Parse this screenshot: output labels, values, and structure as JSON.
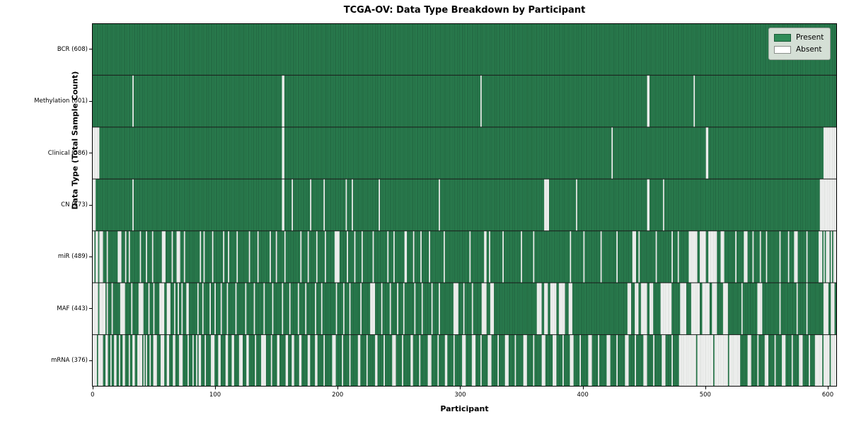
{
  "chart_data": {
    "type": "heatmap",
    "title": "TCGA-OV: Data Type Breakdown by Participant",
    "xlabel": "Participant",
    "ylabel": "Data Type (Total Sample Count)",
    "x_ticks": [
      0,
      100,
      200,
      300,
      400,
      500,
      600
    ],
    "n_participants": 608,
    "xlim": [
      -0.5,
      607.5
    ],
    "grid": false,
    "colors": {
      "present": "#2e8b57",
      "present_edge": "#16432b",
      "absent": "#ffffff",
      "absent_edge": "#bcc0bc",
      "separator": "#1a1a1a"
    },
    "legend": {
      "position": "upper right",
      "entries": [
        {
          "label": "Present",
          "color": "#2e8b57",
          "edge": "#1d5c39"
        },
        {
          "label": "Absent",
          "color": "#ffffff",
          "edge": "#8a8f8a"
        }
      ]
    },
    "rows": [
      {
        "data_type": "BCR",
        "label": "BCR (608)",
        "present_count": 608,
        "absent_count": 0,
        "absent_ranges": []
      },
      {
        "data_type": "Methylation",
        "label": "Methylation (601)",
        "present_count": 601,
        "absent_count": 7,
        "absent_ranges": [
          [
            33,
            33
          ],
          [
            155,
            156
          ],
          [
            317,
            317
          ],
          [
            453,
            454
          ],
          [
            491,
            491
          ]
        ]
      },
      {
        "data_type": "Clinical",
        "label": "Clinical (586)",
        "present_count": 586,
        "absent_count": 22,
        "absent_ranges": [
          [
            0,
            5
          ],
          [
            155,
            156
          ],
          [
            424,
            424
          ],
          [
            501,
            502
          ],
          [
            597,
            607
          ]
        ]
      },
      {
        "data_type": "CN",
        "label": "CN (573)",
        "present_count": 573,
        "absent_count": 35,
        "absent_ranges": [
          [
            0,
            2
          ],
          [
            33,
            33
          ],
          [
            155,
            156
          ],
          [
            163,
            163
          ],
          [
            178,
            178
          ],
          [
            189,
            189
          ],
          [
            207,
            207
          ],
          [
            212,
            212
          ],
          [
            234,
            234
          ],
          [
            283,
            283
          ],
          [
            369,
            372
          ],
          [
            395,
            395
          ],
          [
            453,
            454
          ],
          [
            466,
            466
          ],
          [
            594,
            607
          ]
        ]
      },
      {
        "data_type": "miR",
        "label": "miR (489)",
        "present_count": 489,
        "absent_count": 119,
        "absent_ranges": [
          [
            0,
            1
          ],
          [
            3,
            4
          ],
          [
            6,
            8
          ],
          [
            12,
            12
          ],
          [
            21,
            23
          ],
          [
            27,
            27
          ],
          [
            30,
            30
          ],
          [
            39,
            39
          ],
          [
            44,
            44
          ],
          [
            49,
            49
          ],
          [
            57,
            59
          ],
          [
            65,
            65
          ],
          [
            69,
            71
          ],
          [
            75,
            75
          ],
          [
            88,
            88
          ],
          [
            91,
            91
          ],
          [
            98,
            98
          ],
          [
            107,
            107
          ],
          [
            111,
            111
          ],
          [
            118,
            118
          ],
          [
            128,
            128
          ],
          [
            135,
            135
          ],
          [
            145,
            145
          ],
          [
            150,
            150
          ],
          [
            157,
            157
          ],
          [
            170,
            170
          ],
          [
            176,
            176
          ],
          [
            183,
            183
          ],
          [
            190,
            190
          ],
          [
            198,
            201
          ],
          [
            208,
            208
          ],
          [
            214,
            214
          ],
          [
            220,
            220
          ],
          [
            229,
            229
          ],
          [
            241,
            241
          ],
          [
            246,
            246
          ],
          [
            255,
            256
          ],
          [
            262,
            262
          ],
          [
            268,
            268
          ],
          [
            275,
            275
          ],
          [
            287,
            287
          ],
          [
            308,
            308
          ],
          [
            320,
            321
          ],
          [
            324,
            324
          ],
          [
            335,
            335
          ],
          [
            350,
            350
          ],
          [
            360,
            360
          ],
          [
            390,
            390
          ],
          [
            401,
            401
          ],
          [
            415,
            415
          ],
          [
            428,
            428
          ],
          [
            441,
            443
          ],
          [
            446,
            446
          ],
          [
            460,
            460
          ],
          [
            473,
            473
          ],
          [
            478,
            478
          ],
          [
            487,
            493
          ],
          [
            496,
            500
          ],
          [
            503,
            509
          ],
          [
            513,
            515
          ],
          [
            525,
            525
          ],
          [
            532,
            534
          ],
          [
            539,
            539
          ],
          [
            545,
            545
          ],
          [
            550,
            550
          ],
          [
            561,
            561
          ],
          [
            568,
            568
          ],
          [
            573,
            575
          ],
          [
            583,
            583
          ],
          [
            593,
            595
          ],
          [
            597,
            597
          ],
          [
            599,
            601
          ],
          [
            603,
            603
          ],
          [
            605,
            607
          ]
        ]
      },
      {
        "data_type": "MAF",
        "label": "MAF (443)",
        "present_count": 443,
        "absent_count": 165,
        "absent_ranges": [
          [
            0,
            4
          ],
          [
            6,
            10
          ],
          [
            12,
            12
          ],
          [
            16,
            16
          ],
          [
            23,
            26
          ],
          [
            32,
            32
          ],
          [
            38,
            41
          ],
          [
            46,
            46
          ],
          [
            50,
            50
          ],
          [
            55,
            58
          ],
          [
            61,
            63
          ],
          [
            67,
            67
          ],
          [
            70,
            70
          ],
          [
            73,
            73
          ],
          [
            77,
            78
          ],
          [
            86,
            86
          ],
          [
            90,
            90
          ],
          [
            96,
            96
          ],
          [
            100,
            100
          ],
          [
            105,
            105
          ],
          [
            110,
            110
          ],
          [
            117,
            117
          ],
          [
            125,
            125
          ],
          [
            132,
            132
          ],
          [
            140,
            140
          ],
          [
            147,
            147
          ],
          [
            155,
            155
          ],
          [
            161,
            161
          ],
          [
            168,
            168
          ],
          [
            174,
            174
          ],
          [
            182,
            182
          ],
          [
            187,
            187
          ],
          [
            199,
            199
          ],
          [
            205,
            205
          ],
          [
            210,
            210
          ],
          [
            219,
            219
          ],
          [
            227,
            230
          ],
          [
            236,
            236
          ],
          [
            243,
            243
          ],
          [
            249,
            249
          ],
          [
            254,
            254
          ],
          [
            263,
            263
          ],
          [
            269,
            269
          ],
          [
            277,
            277
          ],
          [
            283,
            283
          ],
          [
            295,
            298
          ],
          [
            303,
            303
          ],
          [
            310,
            310
          ],
          [
            318,
            321
          ],
          [
            325,
            327
          ],
          [
            363,
            366
          ],
          [
            369,
            371
          ],
          [
            374,
            378
          ],
          [
            381,
            385
          ],
          [
            389,
            391
          ],
          [
            437,
            439
          ],
          [
            443,
            445
          ],
          [
            448,
            452
          ],
          [
            455,
            457
          ],
          [
            464,
            472
          ],
          [
            480,
            484
          ],
          [
            489,
            495
          ],
          [
            498,
            503
          ],
          [
            506,
            509
          ],
          [
            515,
            518
          ],
          [
            530,
            530
          ],
          [
            543,
            546
          ],
          [
            561,
            561
          ],
          [
            575,
            575
          ],
          [
            583,
            583
          ],
          [
            597,
            600
          ],
          [
            603,
            605
          ]
        ]
      },
      {
        "data_type": "mRNA",
        "label": "mRNA (376)",
        "present_count": 376,
        "absent_count": 232,
        "absent_ranges": [
          [
            0,
            3
          ],
          [
            5,
            8
          ],
          [
            11,
            12
          ],
          [
            15,
            15
          ],
          [
            18,
            19
          ],
          [
            22,
            22
          ],
          [
            25,
            26
          ],
          [
            30,
            30
          ],
          [
            33,
            34
          ],
          [
            37,
            40
          ],
          [
            42,
            42
          ],
          [
            44,
            44
          ],
          [
            47,
            47
          ],
          [
            50,
            52
          ],
          [
            56,
            58
          ],
          [
            61,
            62
          ],
          [
            66,
            67
          ],
          [
            71,
            73
          ],
          [
            78,
            78
          ],
          [
            82,
            82
          ],
          [
            85,
            85
          ],
          [
            87,
            88
          ],
          [
            92,
            92
          ],
          [
            97,
            99
          ],
          [
            103,
            104
          ],
          [
            109,
            110
          ],
          [
            114,
            115
          ],
          [
            120,
            122
          ],
          [
            126,
            127
          ],
          [
            133,
            133
          ],
          [
            138,
            141
          ],
          [
            146,
            146
          ],
          [
            151,
            152
          ],
          [
            158,
            159
          ],
          [
            163,
            164
          ],
          [
            169,
            170
          ],
          [
            176,
            177
          ],
          [
            182,
            183
          ],
          [
            189,
            189
          ],
          [
            196,
            198
          ],
          [
            204,
            204
          ],
          [
            210,
            210
          ],
          [
            217,
            218
          ],
          [
            224,
            224
          ],
          [
            231,
            232
          ],
          [
            238,
            238
          ],
          [
            245,
            247
          ],
          [
            253,
            253
          ],
          [
            260,
            261
          ],
          [
            267,
            267
          ],
          [
            274,
            276
          ],
          [
            282,
            282
          ],
          [
            288,
            289
          ],
          [
            295,
            295
          ],
          [
            302,
            304
          ],
          [
            310,
            312
          ],
          [
            317,
            317
          ],
          [
            323,
            325
          ],
          [
            331,
            331
          ],
          [
            337,
            339
          ],
          [
            345,
            345
          ],
          [
            352,
            354
          ],
          [
            360,
            360
          ],
          [
            367,
            369
          ],
          [
            376,
            378
          ],
          [
            384,
            384
          ],
          [
            390,
            392
          ],
          [
            398,
            398
          ],
          [
            405,
            407
          ],
          [
            413,
            413
          ],
          [
            420,
            422
          ],
          [
            428,
            428
          ],
          [
            435,
            437
          ],
          [
            443,
            443
          ],
          [
            450,
            452
          ],
          [
            458,
            458
          ],
          [
            465,
            467
          ],
          [
            473,
            473
          ],
          [
            479,
            492
          ],
          [
            494,
            506
          ],
          [
            508,
            518
          ],
          [
            520,
            528
          ],
          [
            535,
            537
          ],
          [
            543,
            543
          ],
          [
            549,
            551
          ],
          [
            557,
            557
          ],
          [
            563,
            565
          ],
          [
            571,
            571
          ],
          [
            577,
            579
          ],
          [
            585,
            585
          ],
          [
            590,
            595
          ],
          [
            597,
            601
          ],
          [
            603,
            607
          ]
        ]
      }
    ]
  }
}
